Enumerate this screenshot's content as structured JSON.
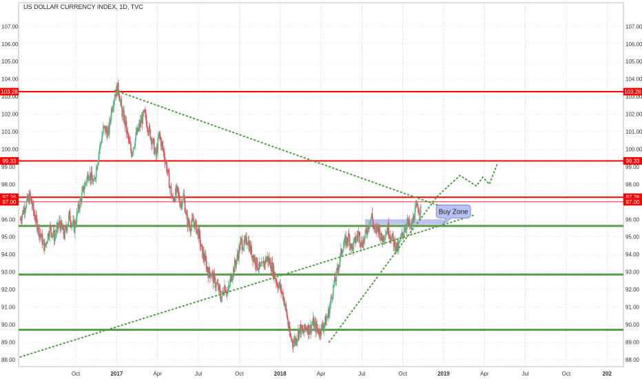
{
  "chart_data": {
    "type": "candlestick",
    "title": "US DOLLAR CURRENCY INDEX, 1D, TVC",
    "y_ticks": [
      88.0,
      89.0,
      90.0,
      91.0,
      92.0,
      93.0,
      94.0,
      95.0,
      96.0,
      97.0,
      98.0,
      99.0,
      100.0,
      101.0,
      102.0,
      103.0,
      104.0,
      105.0,
      106.0,
      107.0
    ],
    "ylim": [
      87.6,
      107.8
    ],
    "x_ticks": [
      {
        "label": "Oct",
        "t": 2016.75,
        "bold": false
      },
      {
        "label": "2017",
        "t": 2017.0,
        "bold": true
      },
      {
        "label": "Apr",
        "t": 2017.25,
        "bold": false
      },
      {
        "label": "Jul",
        "t": 2017.5,
        "bold": false
      },
      {
        "label": "Oct",
        "t": 2017.75,
        "bold": false
      },
      {
        "label": "2018",
        "t": 2018.0,
        "bold": true
      },
      {
        "label": "Apr",
        "t": 2018.25,
        "bold": false
      },
      {
        "label": "Jul",
        "t": 2018.5,
        "bold": false
      },
      {
        "label": "Oct",
        "t": 2018.75,
        "bold": false
      },
      {
        "label": "2019",
        "t": 2019.0,
        "bold": true
      },
      {
        "label": "Apr",
        "t": 2019.25,
        "bold": false
      },
      {
        "label": "Jul",
        "t": 2019.5,
        "bold": false
      },
      {
        "label": "Oct",
        "t": 2019.75,
        "bold": false
      },
      {
        "label": "202",
        "t": 2020.0,
        "bold": true
      }
    ],
    "xlim": [
      2016.4,
      2020.1
    ],
    "colors": {
      "up": "#53b987",
      "down": "#eb4d5c",
      "resistance": "#ff0000",
      "support": "#5b9a4e",
      "trend": "#4a9e3c",
      "zone": "#b3b7ee",
      "badge": "#ff0000",
      "callout": "#b8c2f2"
    },
    "resistance_levels": [
      {
        "value": 103.28,
        "label": "103.28",
        "badge": true
      },
      {
        "value": 99.33,
        "label": "99.33",
        "badge": true
      },
      {
        "value": 97.26,
        "label": "97.26",
        "badge": true
      },
      {
        "value": 97.0,
        "label": "97.00",
        "badge": true,
        "thin": true
      }
    ],
    "support_levels": [
      95.62,
      92.85,
      89.7
    ],
    "trendlines": [
      {
        "from": [
          2016.41,
          88.15
        ],
        "to": [
          2019.19,
          96.25
        ]
      },
      {
        "from": [
          2016.99,
          103.35
        ],
        "to": [
          2018.98,
          96.75
        ]
      },
      {
        "from": [
          2018.3,
          89.0
        ],
        "to": [
          2018.96,
          97.3
        ]
      }
    ],
    "projection": [
      [
        2018.96,
        97.3
      ],
      [
        2019.1,
        98.5
      ],
      [
        2019.2,
        97.9
      ],
      [
        2019.24,
        98.4
      ],
      [
        2019.28,
        98.0
      ],
      [
        2019.33,
        99.2
      ]
    ],
    "buy_zone": {
      "from": 2018.52,
      "to": 2019.0,
      "low": 95.7,
      "high": 96.0
    },
    "annotation": {
      "text": "Buy Zone",
      "t": 2019.06,
      "value": 96.45
    },
    "price_path": [
      [
        2016.41,
        96.0
      ],
      [
        2016.44,
        96.8
      ],
      [
        2016.47,
        97.3
      ],
      [
        2016.5,
        96.1
      ],
      [
        2016.53,
        95.2
      ],
      [
        2016.56,
        94.4
      ],
      [
        2016.59,
        95.5
      ],
      [
        2016.62,
        95.0
      ],
      [
        2016.65,
        95.8
      ],
      [
        2016.68,
        95.1
      ],
      [
        2016.71,
        96.2
      ],
      [
        2016.74,
        95.5
      ],
      [
        2016.77,
        96.8
      ],
      [
        2016.8,
        97.8
      ],
      [
        2016.83,
        98.7
      ],
      [
        2016.86,
        98.0
      ],
      [
        2016.89,
        99.8
      ],
      [
        2016.92,
        101.2
      ],
      [
        2016.95,
        100.9
      ],
      [
        2016.97,
        102.4
      ],
      [
        2016.99,
        103.2
      ],
      [
        2017.01,
        103.5
      ],
      [
        2017.03,
        102.2
      ],
      [
        2017.05,
        101.6
      ],
      [
        2017.07,
        100.6
      ],
      [
        2017.09,
        99.8
      ],
      [
        2017.12,
        100.8
      ],
      [
        2017.15,
        101.6
      ],
      [
        2017.17,
        102.0
      ],
      [
        2017.2,
        101.0
      ],
      [
        2017.22,
        100.4
      ],
      [
        2017.24,
        99.6
      ],
      [
        2017.26,
        100.8
      ],
      [
        2017.28,
        100.1
      ],
      [
        2017.3,
        99.3
      ],
      [
        2017.32,
        98.2
      ],
      [
        2017.34,
        97.1
      ],
      [
        2017.37,
        97.6
      ],
      [
        2017.39,
        96.9
      ],
      [
        2017.41,
        97.3
      ],
      [
        2017.43,
        95.9
      ],
      [
        2017.45,
        95.6
      ],
      [
        2017.47,
        95.9
      ],
      [
        2017.5,
        95.2
      ],
      [
        2017.52,
        94.2
      ],
      [
        2017.54,
        93.7
      ],
      [
        2017.56,
        93.0
      ],
      [
        2017.58,
        92.9
      ],
      [
        2017.6,
        92.4
      ],
      [
        2017.62,
        92.1
      ],
      [
        2017.64,
        91.5
      ],
      [
        2017.66,
        92.2
      ],
      [
        2017.68,
        91.8
      ],
      [
        2017.7,
        92.7
      ],
      [
        2017.72,
        93.3
      ],
      [
        2017.74,
        93.9
      ],
      [
        2017.76,
        94.7
      ],
      [
        2017.78,
        94.5
      ],
      [
        2017.8,
        94.9
      ],
      [
        2017.82,
        94.2
      ],
      [
        2017.84,
        93.8
      ],
      [
        2017.86,
        93.4
      ],
      [
        2017.88,
        93.1
      ],
      [
        2017.9,
        93.5
      ],
      [
        2017.92,
        93.8
      ],
      [
        2017.94,
        93.5
      ],
      [
        2017.96,
        93.0
      ],
      [
        2017.98,
        92.4
      ],
      [
        2018.0,
        92.1
      ],
      [
        2018.02,
        91.6
      ],
      [
        2018.04,
        90.6
      ],
      [
        2018.06,
        89.3
      ],
      [
        2018.08,
        89.0
      ],
      [
        2018.1,
        89.2
      ],
      [
        2018.12,
        89.8
      ],
      [
        2018.14,
        89.5
      ],
      [
        2018.16,
        89.9
      ],
      [
        2018.18,
        89.7
      ],
      [
        2018.2,
        90.1
      ],
      [
        2018.22,
        89.8
      ],
      [
        2018.24,
        89.6
      ],
      [
        2018.26,
        89.9
      ],
      [
        2018.28,
        90.2
      ],
      [
        2018.3,
        90.8
      ],
      [
        2018.32,
        91.9
      ],
      [
        2018.34,
        92.6
      ],
      [
        2018.36,
        93.5
      ],
      [
        2018.38,
        94.4
      ],
      [
        2018.4,
        94.7
      ],
      [
        2018.42,
        95.0
      ],
      [
        2018.44,
        94.3
      ],
      [
        2018.46,
        94.8
      ],
      [
        2018.48,
        95.2
      ],
      [
        2018.5,
        94.6
      ],
      [
        2018.52,
        95.0
      ],
      [
        2018.54,
        95.7
      ],
      [
        2018.56,
        96.2
      ],
      [
        2018.58,
        95.2
      ],
      [
        2018.6,
        95.6
      ],
      [
        2018.62,
        94.8
      ],
      [
        2018.64,
        95.2
      ],
      [
        2018.66,
        95.5
      ],
      [
        2018.68,
        95.0
      ],
      [
        2018.7,
        94.6
      ],
      [
        2018.72,
        94.3
      ],
      [
        2018.74,
        94.9
      ],
      [
        2018.76,
        95.5
      ],
      [
        2018.78,
        95.8
      ],
      [
        2018.8,
        95.4
      ],
      [
        2018.82,
        96.3
      ],
      [
        2018.84,
        96.7
      ],
      [
        2018.86,
        96.5
      ]
    ]
  }
}
